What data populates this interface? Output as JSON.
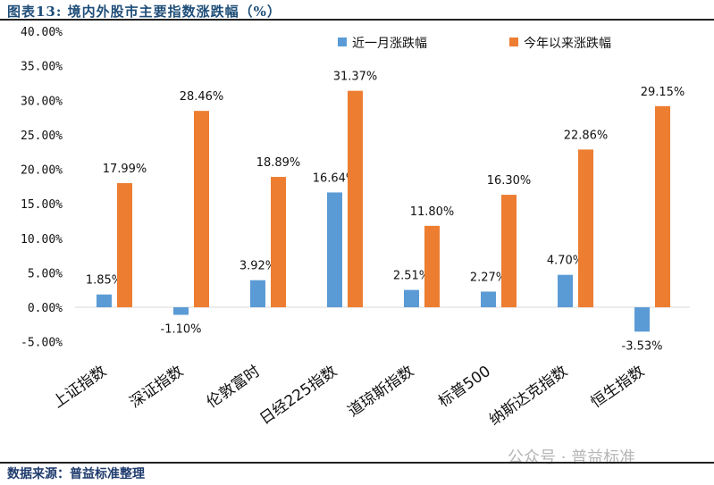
{
  "title": "图表13:   境内外股市主要指数涨跌幅（%）",
  "source": "数据来源：普益标准整理",
  "watermark": "公众号 · 普益标准",
  "chart_data": {
    "type": "bar",
    "title": "",
    "categories": [
      "上证指数",
      "深证指数",
      "伦敦富时",
      "日经225指数",
      "道琼斯指数",
      "标普500",
      "纳斯达克指数",
      "恒生指数"
    ],
    "series": [
      {
        "name": "近一月涨跌幅",
        "color": "#5b9bd5",
        "values": [
          1.85,
          -1.1,
          3.92,
          16.64,
          2.51,
          2.27,
          4.7,
          -3.53
        ],
        "labels": [
          "1.85%",
          "-1.10%",
          "3.92%",
          "16.64%",
          "2.51%",
          "2.27%",
          "4.70%",
          "-3.53%"
        ]
      },
      {
        "name": "今年以来涨跌幅",
        "color": "#ed7d31",
        "values": [
          17.99,
          28.46,
          18.89,
          31.37,
          11.8,
          16.3,
          22.86,
          29.15
        ],
        "labels": [
          "17.99%",
          "28.46%",
          "18.89%",
          "31.37%",
          "11.80%",
          "16.30%",
          "22.86%",
          "29.15%"
        ]
      }
    ],
    "ylim": [
      -5,
      40
    ],
    "yticks": [
      -5,
      0,
      5,
      10,
      15,
      20,
      25,
      30,
      35,
      40
    ],
    "ytick_labels": [
      "-5.00%",
      "0.00%",
      "5.00%",
      "10.00%",
      "15.00%",
      "20.00%",
      "25.00%",
      "30.00%",
      "35.00%",
      "40.00%"
    ],
    "grid": false,
    "legend": "top-right"
  }
}
